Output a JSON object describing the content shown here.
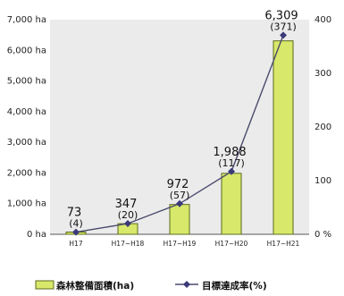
{
  "chart_data": {
    "type": "bar",
    "categories": [
      "H17",
      "H17~H18",
      "H17~H19",
      "H17~H20",
      "H17~H21"
    ],
    "series": [
      {
        "name": "森林整備面積(ha)",
        "type": "bar",
        "axis": "left",
        "values": [
          73,
          347,
          972,
          1988,
          6309
        ],
        "value_labels": [
          "73",
          "347",
          "972",
          "1,988",
          "6,309"
        ],
        "color": "#d8e86a"
      },
      {
        "name": "目標達成率(%)",
        "type": "line",
        "axis": "right",
        "values": [
          4,
          20,
          57,
          117,
          371
        ],
        "value_labels": [
          "(4)",
          "(20)",
          "(57)",
          "(117)",
          "(371)"
        ],
        "color": "#4a4a6e"
      }
    ],
    "y_left": {
      "lim": [
        0,
        7000
      ],
      "ticks": [
        0,
        1000,
        2000,
        3000,
        4000,
        5000,
        6000,
        7000
      ],
      "tick_labels": [
        "0 ha",
        "1,000 ha",
        "2,000 ha",
        "3,000 ha",
        "4,000 ha",
        "5,000 ha",
        "6,000 ha",
        "7,000 ha"
      ]
    },
    "y_right": {
      "lim": [
        0,
        400
      ],
      "ticks": [
        0,
        100,
        200,
        300,
        400
      ],
      "tick_labels": [
        "0 %",
        "100",
        "200",
        "300",
        "400"
      ]
    },
    "legend": {
      "position": "bottom",
      "bar_label": "森林整備面積(ha)",
      "line_label": "目標達成率(%)"
    },
    "plot_background": "#ebebeb"
  }
}
